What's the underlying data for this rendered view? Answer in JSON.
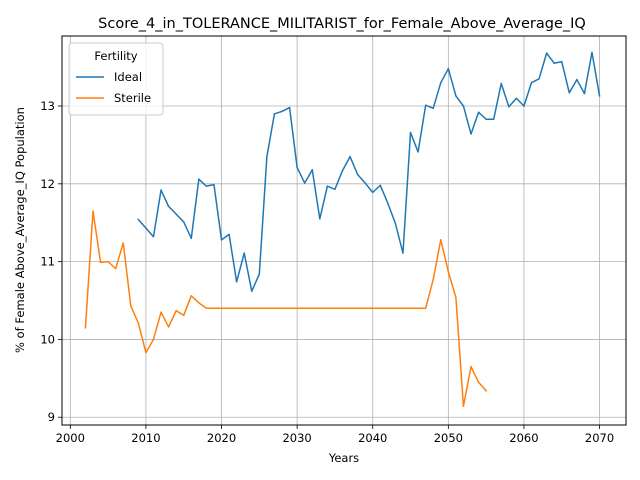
{
  "chart_data": {
    "type": "line",
    "title": "Score_4_in_TOLERANCE_MILITARIST_for_Female_Above_Average_IQ",
    "xlabel": "Years",
    "ylabel": "% of Female Above_Average_IQ Population",
    "xlim": [
      1998.9,
      2073.5
    ],
    "ylim": [
      8.9,
      13.9
    ],
    "xticks": [
      2000,
      2010,
      2020,
      2030,
      2040,
      2050,
      2060,
      2070
    ],
    "yticks": [
      9,
      10,
      11,
      12,
      13
    ],
    "grid": true,
    "legend": {
      "title": "Fertility",
      "placement": "top-left"
    },
    "series": [
      {
        "name": "Ideal",
        "color": "#1f77b4",
        "x": [
          2009,
          2010,
          2011,
          2012,
          2013,
          2014,
          2015,
          2016,
          2017,
          2018,
          2019,
          2020,
          2021,
          2022,
          2023,
          2024,
          2025,
          2026,
          2027,
          2028,
          2029,
          2030,
          2031,
          2032,
          2033,
          2034,
          2035,
          2036,
          2037,
          2038,
          2039,
          2040,
          2041,
          2042,
          2043,
          2044,
          2045,
          2046,
          2047,
          2048,
          2049,
          2050,
          2051,
          2052,
          2053,
          2054,
          2055,
          2056,
          2057,
          2058,
          2059,
          2060,
          2061,
          2062,
          2063,
          2064,
          2065,
          2066,
          2067,
          2068,
          2069,
          2070
        ],
        "values": [
          11.54,
          11.43,
          11.32,
          11.92,
          11.71,
          11.61,
          11.51,
          11.3,
          12.06,
          11.97,
          11.99,
          11.28,
          11.35,
          10.74,
          11.11,
          10.62,
          10.84,
          12.35,
          12.9,
          12.93,
          12.98,
          12.21,
          12.01,
          12.18,
          11.55,
          11.97,
          11.93,
          12.17,
          12.35,
          12.12,
          12.01,
          11.89,
          11.98,
          11.75,
          11.49,
          11.11,
          12.66,
          12.41,
          13.01,
          12.97,
          13.3,
          13.48,
          13.13,
          13.0,
          12.64,
          12.92,
          12.83,
          12.83,
          13.29,
          12.99,
          13.1,
          13.0,
          13.3,
          13.35,
          13.68,
          13.55,
          13.57,
          13.17,
          13.34,
          13.16,
          13.69,
          13.13
        ]
      },
      {
        "name": "Sterile",
        "color": "#ff7f0e",
        "x": [
          2002,
          2003,
          2004,
          2005,
          2006,
          2007,
          2008,
          2009,
          2010,
          2011,
          2012,
          2013,
          2014,
          2015,
          2016,
          2017,
          2018,
          2019,
          2020,
          2021,
          2022,
          2023,
          2024,
          2025,
          2026,
          2027,
          2028,
          2029,
          2030,
          2031,
          2032,
          2033,
          2034,
          2035,
          2036,
          2037,
          2038,
          2039,
          2040,
          2041,
          2042,
          2043,
          2044,
          2045,
          2046,
          2047,
          2048,
          2049,
          2050,
          2051,
          2052,
          2053,
          2054,
          2055
        ],
        "values": [
          10.15,
          11.65,
          10.99,
          11.0,
          10.91,
          11.24,
          10.43,
          10.21,
          9.83,
          10.0,
          10.35,
          10.16,
          10.37,
          10.31,
          10.56,
          10.47,
          10.4,
          10.4,
          10.4,
          10.4,
          10.4,
          10.4,
          10.4,
          10.4,
          10.4,
          10.4,
          10.4,
          10.4,
          10.4,
          10.4,
          10.4,
          10.4,
          10.4,
          10.4,
          10.4,
          10.4,
          10.4,
          10.4,
          10.4,
          10.4,
          10.4,
          10.4,
          10.4,
          10.4,
          10.4,
          10.4,
          10.77,
          11.28,
          10.87,
          10.54,
          9.14,
          9.65,
          9.45,
          9.34
        ]
      }
    ]
  }
}
